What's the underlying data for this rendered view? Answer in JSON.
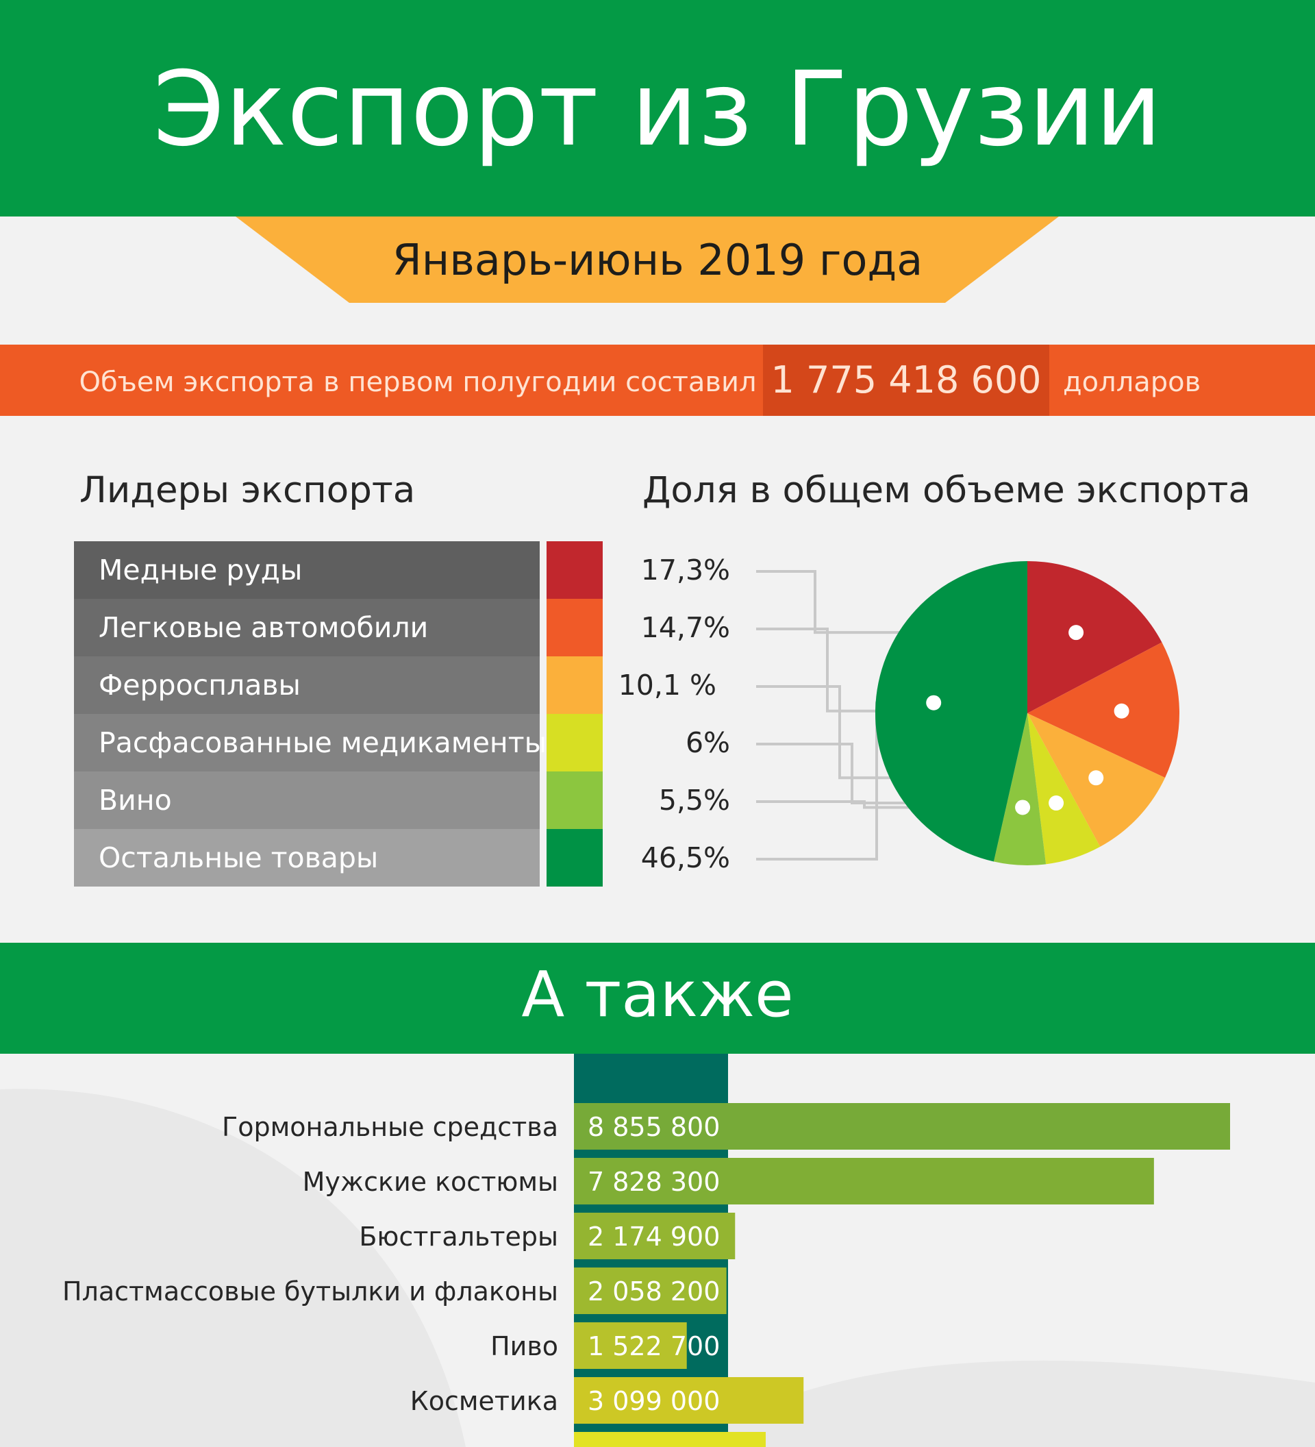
{
  "title": "Экспорт из Грузии",
  "period": "Январь-июнь 2019 года",
  "total": {
    "label": "Объем экспорта в первом полугодии составил",
    "value": "1  775 418 600",
    "unit": "долларов"
  },
  "leaders_heading": "Лидеры экспорта",
  "share_heading": "Доля в общем объеме экспорта",
  "also_heading": "А также",
  "colors": {
    "green": "#049a45",
    "orange_banner": "#fbb03b",
    "orange_strip": "#ee5a24",
    "copper": "#c1272d",
    "cars": "#f05a28",
    "ferro": "#fbb03b",
    "meds": "#d7df23",
    "wine": "#8cc63f",
    "other": "#009245",
    "teal": "#006b5e"
  },
  "chart_data": [
    {
      "type": "pie",
      "title": "Доля в общем объеме экспорта",
      "categories": [
        "Медные руды",
        "Легковые автомобили",
        "Ферросплавы",
        "Расфасованные медикаменты",
        "Вино",
        "Остальные товары"
      ],
      "values": [
        17.3,
        14.7,
        10.1,
        6,
        5.5,
        46.5
      ],
      "value_labels": [
        "17,3%",
        "14,7%",
        "10,1 %",
        "6%",
        "5,5%",
        "46,5%"
      ],
      "colors": [
        "#c1272d",
        "#f05a28",
        "#fbb03b",
        "#d7df23",
        "#8cc63f",
        "#009245"
      ]
    },
    {
      "type": "bar",
      "orientation": "horizontal",
      "title": "А также",
      "categories": [
        "Гормональные средства",
        "Мужские костюмы",
        "Бюстгальтеры",
        "Пластмассовые бутылки и флаконы",
        "Пиво",
        "Косметика"
      ],
      "values": [
        8855800,
        7828300,
        2174900,
        2058200,
        1522700,
        3099000
      ],
      "value_labels": [
        "8 855 800",
        "7 828 300",
        "2 174 900",
        "2 058 200",
        "1 522 700",
        "3 099 000"
      ],
      "colors": [
        "#77aa38",
        "#80ae35",
        "#94b531",
        "#9eb92f",
        "#b7c22b",
        "#cdc825"
      ]
    }
  ]
}
